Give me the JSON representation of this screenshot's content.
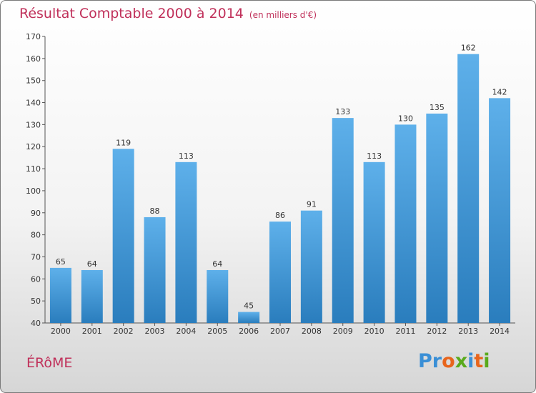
{
  "header": {
    "title": "Résultat Comptable 2000 à 2014",
    "subtitle": "(en milliers d'€)"
  },
  "footer": {
    "commune": "ÉRôME",
    "logo_letters": [
      "P",
      "r",
      "o",
      "x",
      "i",
      "t",
      "i"
    ],
    "logo_colors": [
      "#3a8fd6",
      "#3a8fd6",
      "#e8651c",
      "#5aaa1c",
      "#3a8fd6",
      "#e8651c",
      "#5aaa1c"
    ]
  },
  "colors": {
    "bar_top": "#5eb0ea",
    "bar_bottom": "#2a7dbd",
    "title": "#c0305a"
  },
  "chart_data": {
    "type": "bar",
    "title": "Résultat Comptable 2000 à 2014",
    "subtitle": "(en milliers d'€)",
    "categories": [
      "2000",
      "2001",
      "2002",
      "2003",
      "2004",
      "2005",
      "2006",
      "2007",
      "2008",
      "2009",
      "2010",
      "2011",
      "2012",
      "2013",
      "2014"
    ],
    "values": [
      65,
      64,
      119,
      88,
      113,
      64,
      45,
      86,
      91,
      133,
      113,
      130,
      135,
      162,
      142
    ],
    "ylim": [
      40,
      170
    ],
    "yticks": [
      40,
      50,
      60,
      70,
      80,
      90,
      100,
      110,
      120,
      130,
      140,
      150,
      160,
      170
    ],
    "grid": false,
    "data_labels": true
  }
}
